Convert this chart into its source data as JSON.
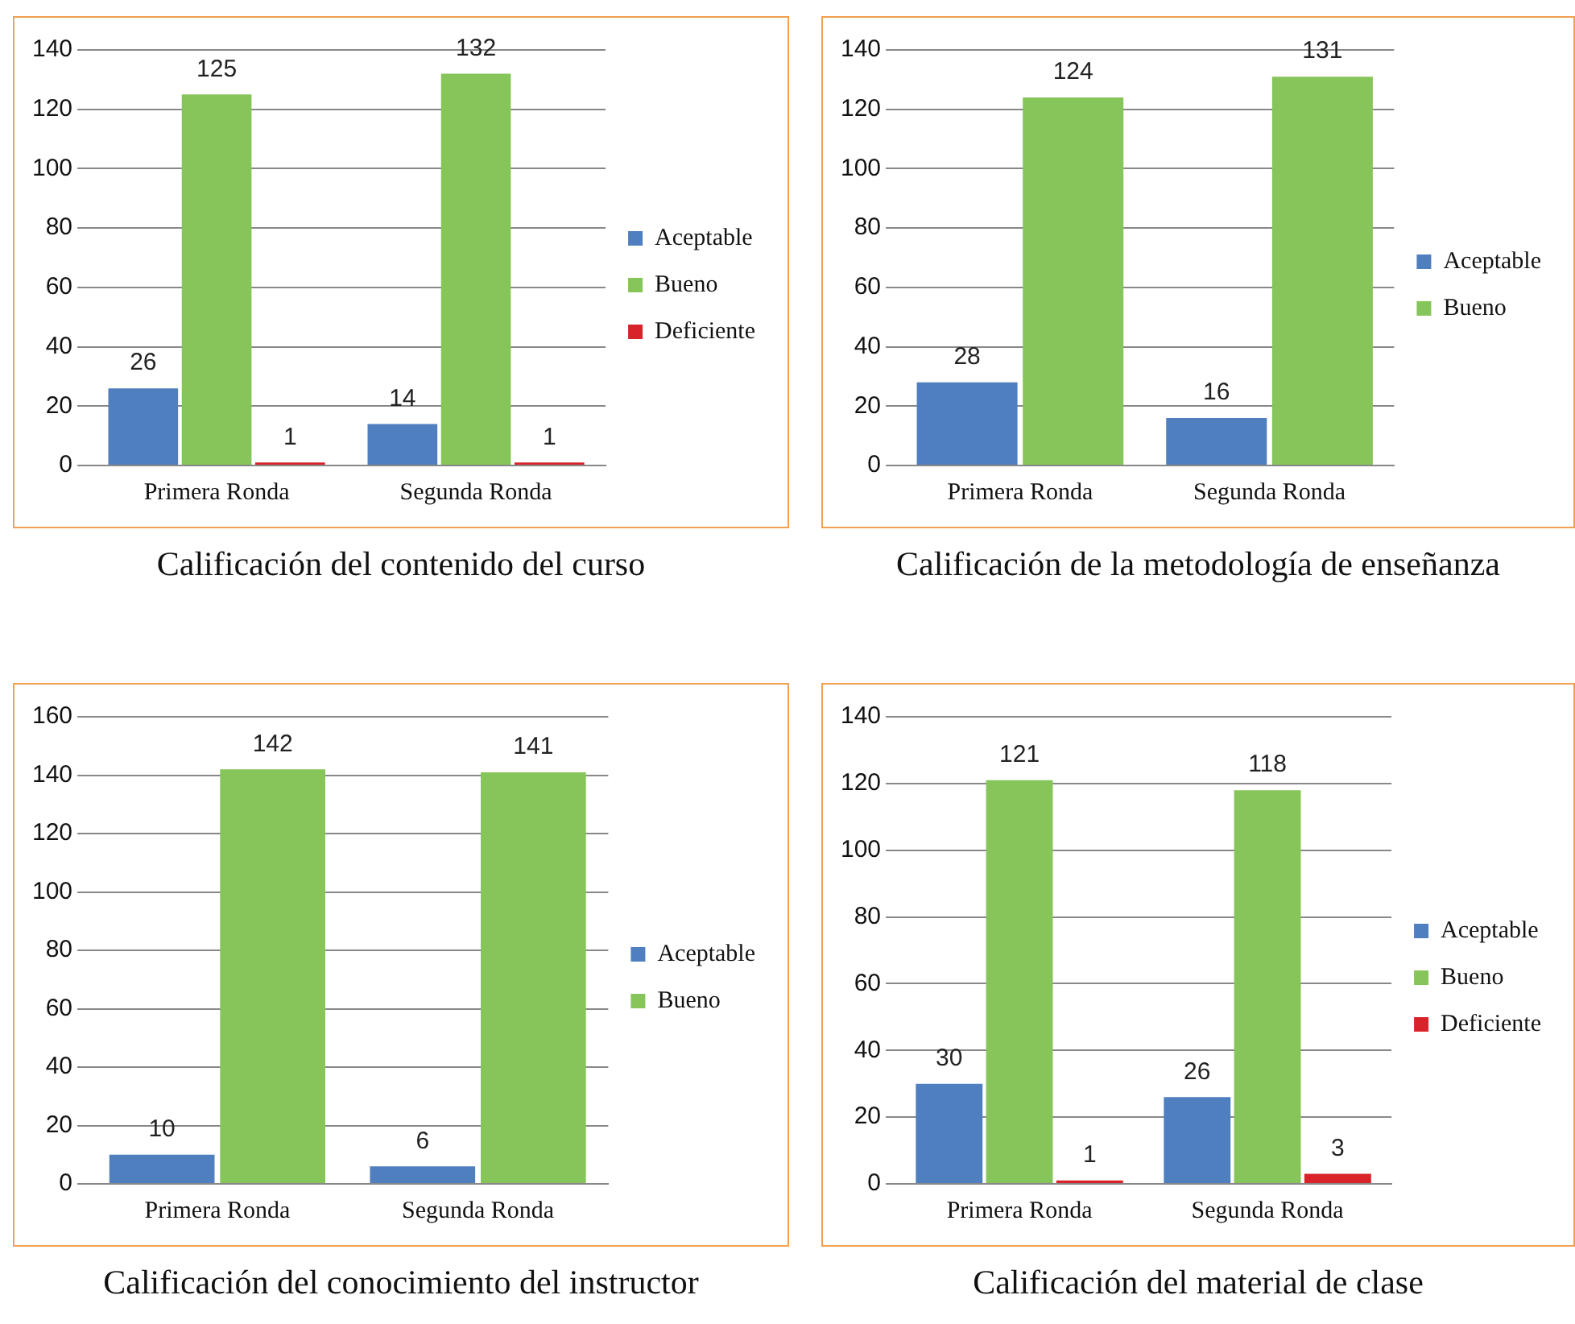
{
  "chart_data": [
    {
      "type": "bar",
      "title": "Calificación del contenido del curso",
      "categories": [
        "Primera Ronda",
        "Segunda Ronda"
      ],
      "series": [
        {
          "name": "Aceptable",
          "color": "#4f7fbf",
          "values": [
            26,
            14
          ]
        },
        {
          "name": "Bueno",
          "color": "#86c55a",
          "values": [
            125,
            132
          ]
        },
        {
          "name": "Deficiente",
          "color": "#d9232a",
          "values": [
            1,
            1
          ]
        }
      ],
      "ylim": [
        0,
        140
      ],
      "yticks": [
        0,
        20,
        40,
        60,
        80,
        100,
        120,
        140
      ],
      "grid": "y",
      "legend": "right",
      "data_labels": true
    },
    {
      "type": "bar",
      "title": "Calificación de la metodología de enseñanza",
      "categories": [
        "Primera Ronda",
        "Segunda Ronda"
      ],
      "series": [
        {
          "name": "Aceptable",
          "color": "#4f7fbf",
          "values": [
            28,
            16
          ]
        },
        {
          "name": "Bueno",
          "color": "#86c55a",
          "values": [
            124,
            131
          ]
        }
      ],
      "ylim": [
        0,
        140
      ],
      "yticks": [
        0,
        20,
        40,
        60,
        80,
        100,
        120,
        140
      ],
      "grid": "y",
      "legend": "right",
      "data_labels": true
    },
    {
      "type": "bar",
      "title": "Calificación del conocimiento del instructor",
      "categories": [
        "Primera Ronda",
        "Segunda Ronda"
      ],
      "series": [
        {
          "name": "Aceptable",
          "color": "#4f7fbf",
          "values": [
            10,
            6
          ]
        },
        {
          "name": "Bueno",
          "color": "#86c55a",
          "values": [
            142,
            141
          ]
        }
      ],
      "ylim": [
        0,
        160
      ],
      "yticks": [
        0,
        20,
        40,
        60,
        80,
        100,
        120,
        140,
        160
      ],
      "grid": "y",
      "legend": "right",
      "data_labels": true
    },
    {
      "type": "bar",
      "title": "Calificación del material de clase",
      "categories": [
        "Primera Ronda",
        "Segunda Ronda"
      ],
      "series": [
        {
          "name": "Aceptable",
          "color": "#4f7fbf",
          "values": [
            30,
            26
          ]
        },
        {
          "name": "Bueno",
          "color": "#86c55a",
          "values": [
            121,
            118
          ]
        },
        {
          "name": "Deficiente",
          "color": "#d9232a",
          "values": [
            1,
            3
          ]
        }
      ],
      "ylim": [
        0,
        140
      ],
      "yticks": [
        0,
        20,
        40,
        60,
        80,
        100,
        120,
        140
      ],
      "grid": "y",
      "legend": "right",
      "data_labels": true
    }
  ]
}
